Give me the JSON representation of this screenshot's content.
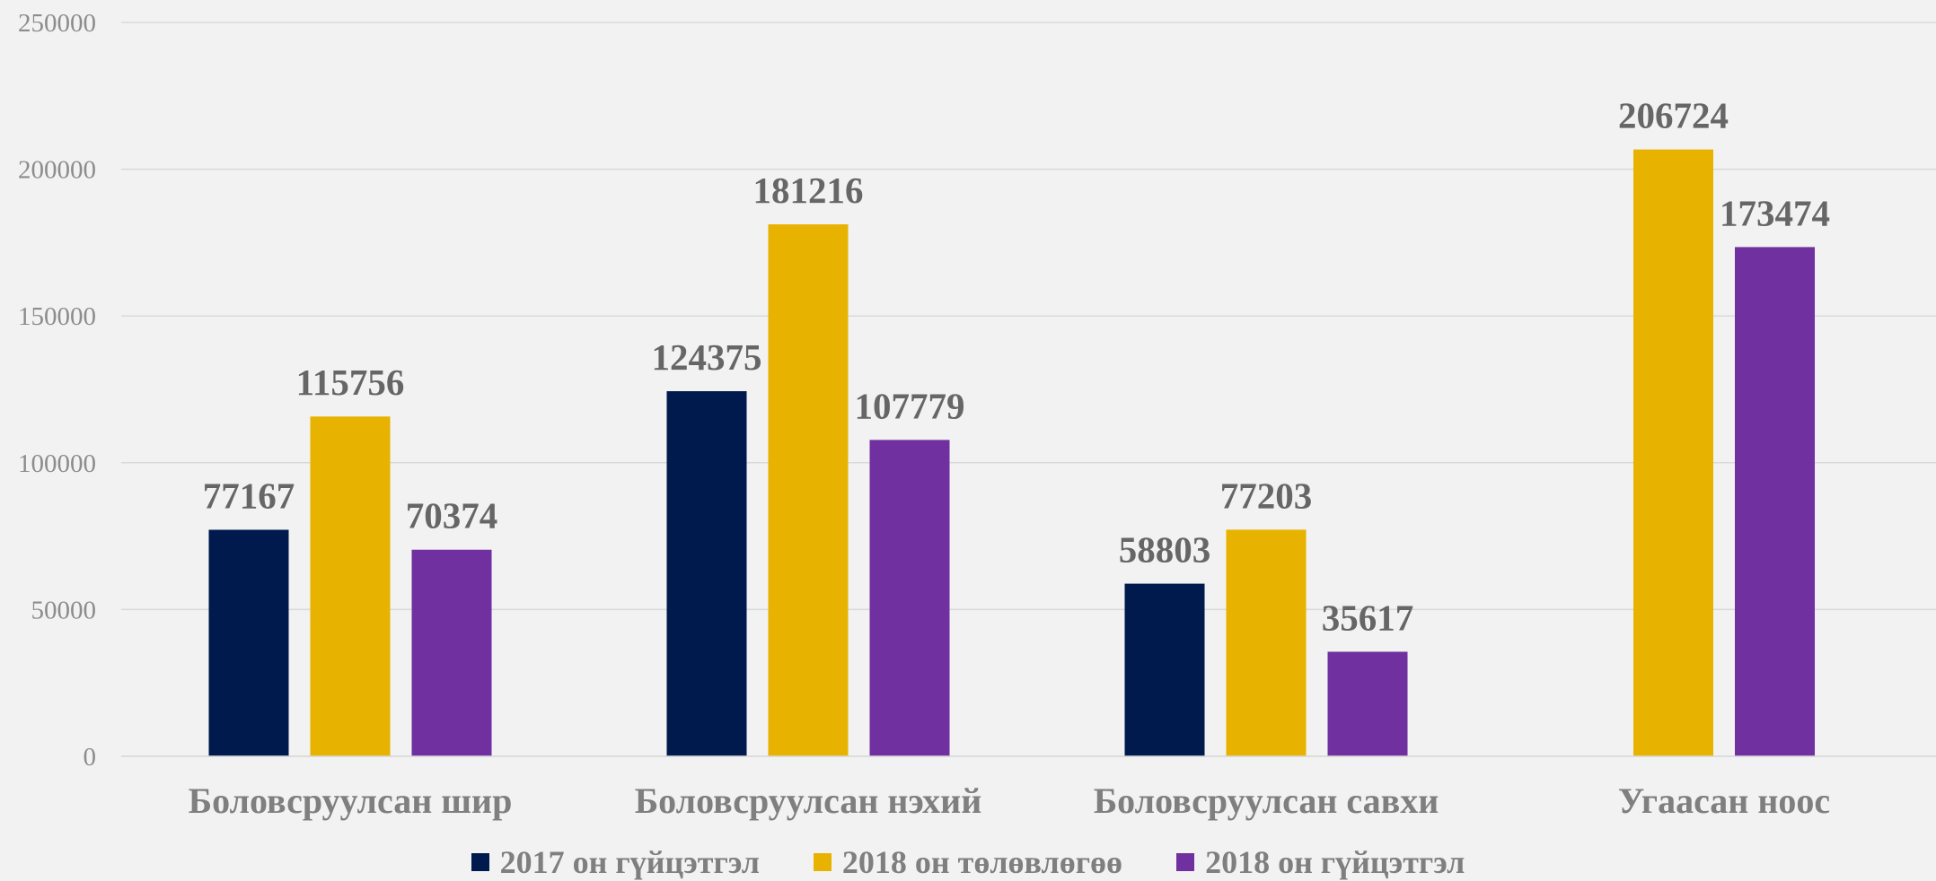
{
  "chart_data": {
    "type": "bar",
    "title": "",
    "xlabel": "",
    "ylabel": "",
    "ylim": [
      0,
      250000
    ],
    "yticks": [
      "0",
      "50000",
      "100000",
      "150000",
      "200000",
      "250000"
    ],
    "ytick_values": [
      0,
      50000,
      100000,
      150000,
      200000,
      250000
    ],
    "grid": true,
    "legend_position": "bottom",
    "categories": [
      "Боловсруулсан шир",
      "Боловсруулсан нэхий",
      "Боловсруулсан савхи",
      "Угаасан ноос"
    ],
    "series": [
      {
        "name": "2017 он гүйцэтгэл",
        "color": "#001a4d",
        "values": [
          77167,
          124375,
          58803,
          null
        ],
        "labels": [
          "77167",
          "124375",
          "58803",
          ""
        ]
      },
      {
        "name": "2018 он төлөвлөгөө",
        "color": "#e8b200",
        "values": [
          115756,
          181216,
          77203,
          206724
        ],
        "labels": [
          "115756",
          "181216",
          "77203",
          "206724"
        ]
      },
      {
        "name": "2018 он гүйцэтгэл",
        "color": "#7030a0",
        "values": [
          70374,
          107779,
          35617,
          173474
        ],
        "labels": [
          "70374",
          "107779",
          "35617",
          "173474"
        ]
      }
    ]
  }
}
